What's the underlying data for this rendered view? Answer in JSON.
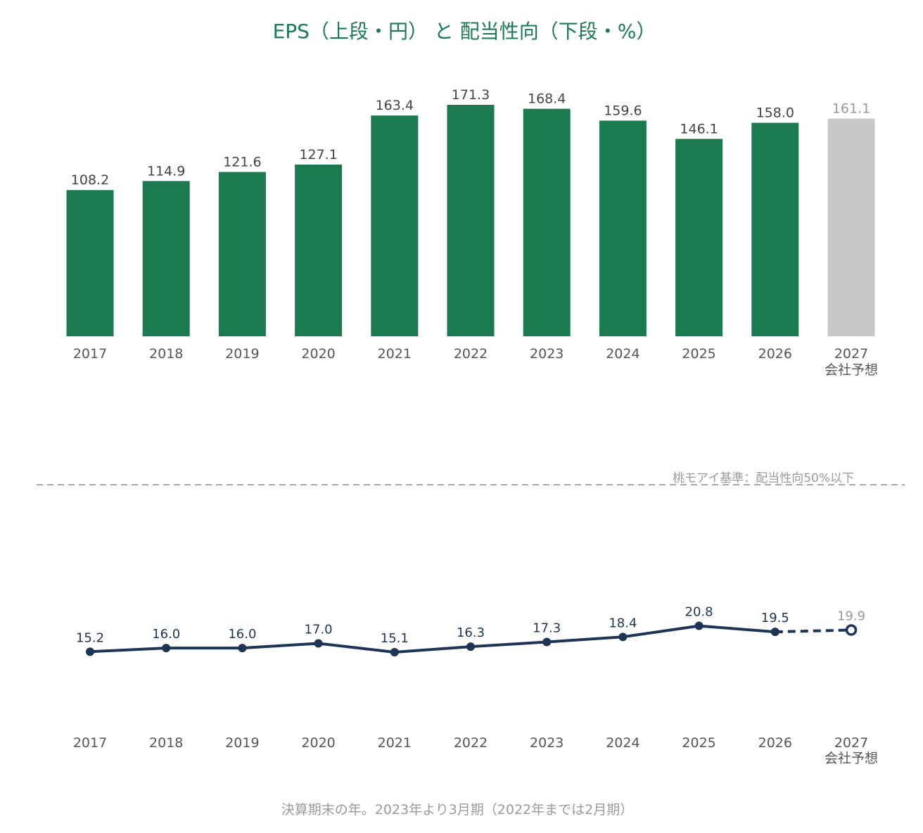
{
  "title": "EPS（上段・円） と 配当性向（下段・%）",
  "colors": {
    "bar": "#1b7a4f",
    "forecast_bar": "#c8c8c8",
    "line": "#1e3456",
    "title": "#1b7a4f",
    "muted": "#9a9a9a"
  },
  "reference_note": "桃モアイ基準：配当性向50%以下",
  "footnote": "決算期末の年。2023年より3月期（2022年までは2月期）",
  "forecast_label": "会社予想",
  "chart_data": [
    {
      "type": "bar",
      "categories": [
        "2017",
        "2018",
        "2019",
        "2020",
        "2021",
        "2022",
        "2023",
        "2024",
        "2025",
        "2026",
        "2027"
      ],
      "values": [
        108.2,
        114.9,
        121.6,
        127.1,
        163.4,
        171.3,
        168.4,
        159.6,
        146.1,
        158.0,
        161.1
      ],
      "value_labels": [
        "108.2",
        "114.9",
        "121.6",
        "127.1",
        "163.4",
        "171.3",
        "168.4",
        "159.6",
        "146.1",
        "158.0",
        "161.1"
      ],
      "forecast_index": 10,
      "ylim": [
        0,
        171.3
      ],
      "grid": false
    },
    {
      "type": "line",
      "categories": [
        "2017",
        "2018",
        "2019",
        "2020",
        "2021",
        "2022",
        "2023",
        "2024",
        "2025",
        "2026",
        "2027"
      ],
      "values": [
        15.2,
        16.0,
        16.0,
        17.0,
        15.1,
        16.3,
        17.3,
        18.4,
        20.8,
        19.5,
        19.9
      ],
      "value_labels": [
        "15.2",
        "16.0",
        "16.0",
        "17.0",
        "15.1",
        "16.3",
        "17.3",
        "18.4",
        "20.8",
        "19.5",
        "19.9"
      ],
      "forecast_index": 10,
      "reference_line": 50,
      "reference_label": "桃モアイ基準：配当性向50%以下",
      "grid": false
    }
  ]
}
